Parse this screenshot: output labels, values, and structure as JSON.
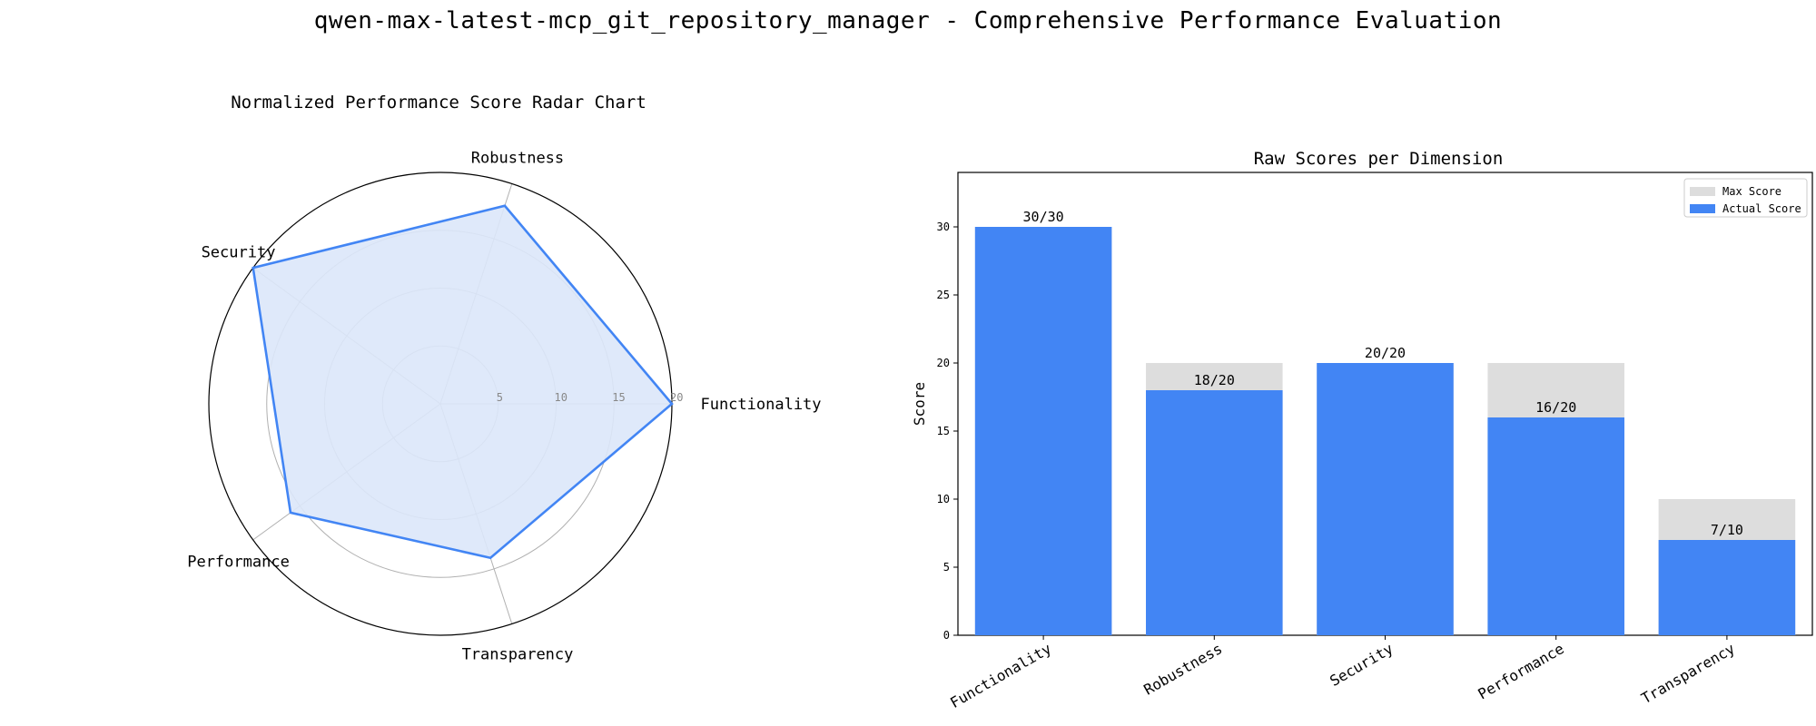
{
  "title": "qwen-max-latest-mcp_git_repository_manager - Comprehensive Performance Evaluation",
  "colors": {
    "accent": "#4285f4",
    "fill": "#dce7fa",
    "max_bar": "#dddddd",
    "grid": "#b0b0b0"
  },
  "chart_data": [
    {
      "type": "radar",
      "title": "Normalized Performance Score Radar Chart",
      "axes": [
        "Functionality",
        "Robustness",
        "Security",
        "Performance",
        "Transparency"
      ],
      "values": [
        20,
        18,
        20,
        16,
        14
      ],
      "rlim": [
        0,
        20
      ],
      "rticks": [
        "5",
        "10",
        "15",
        "20"
      ],
      "grid": true
    },
    {
      "type": "bar",
      "title": "Raw Scores per Dimension",
      "ylabel": "Score",
      "categories": [
        "Functionality",
        "Robustness",
        "Security",
        "Performance",
        "Transparency"
      ],
      "ylim": [
        0,
        34
      ],
      "yticks": [
        "0",
        "5",
        "10",
        "15",
        "20",
        "25",
        "30"
      ],
      "series": [
        {
          "name": "Max Score",
          "values": [
            30,
            20,
            20,
            20,
            10
          ]
        },
        {
          "name": "Actual Score",
          "values": [
            30,
            18,
            20,
            16,
            7
          ]
        }
      ],
      "data_labels": [
        "30/30",
        "18/20",
        "20/20",
        "16/20",
        "7/10"
      ],
      "legend": "top-right",
      "grid": false
    }
  ]
}
